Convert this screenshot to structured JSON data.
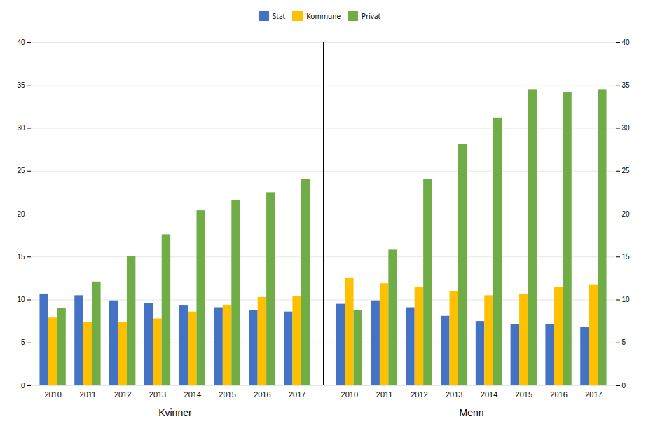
{
  "chart_data": {
    "type": "bar",
    "categories": [
      "2010",
      "2011",
      "2012",
      "2013",
      "2014",
      "2015",
      "2016",
      "2017",
      "2010",
      "2011",
      "2012",
      "2013",
      "2014",
      "2015",
      "2016",
      "2017"
    ],
    "group_labels": [
      "Kvinner",
      "Menn"
    ],
    "series": [
      {
        "name": "Stat",
        "color": "#4472C4",
        "values": [
          10.7,
          10.5,
          9.9,
          9.6,
          9.3,
          9.1,
          8.8,
          8.6,
          9.5,
          9.9,
          9.1,
          8.1,
          7.5,
          7.1,
          7.1,
          6.8
        ]
      },
      {
        "name": "Kommune",
        "color": "#FFC000",
        "values": [
          7.9,
          7.4,
          7.4,
          7.8,
          8.6,
          9.4,
          10.3,
          10.4,
          12.5,
          11.9,
          11.5,
          11.0,
          10.5,
          10.7,
          11.5,
          11.7
        ]
      },
      {
        "name": "Privat",
        "color": "#70AD47",
        "values": [
          9.0,
          12.1,
          15.1,
          17.6,
          20.4,
          21.6,
          22.5,
          24.0,
          8.8,
          15.8,
          24.0,
          28.1,
          31.2,
          34.5,
          34.2,
          34.5
        ]
      }
    ],
    "ylim": [
      0,
      40
    ],
    "yticks": [
      0,
      5,
      10,
      15,
      20,
      25,
      30,
      35,
      40
    ],
    "grid": true,
    "legend": "top"
  }
}
